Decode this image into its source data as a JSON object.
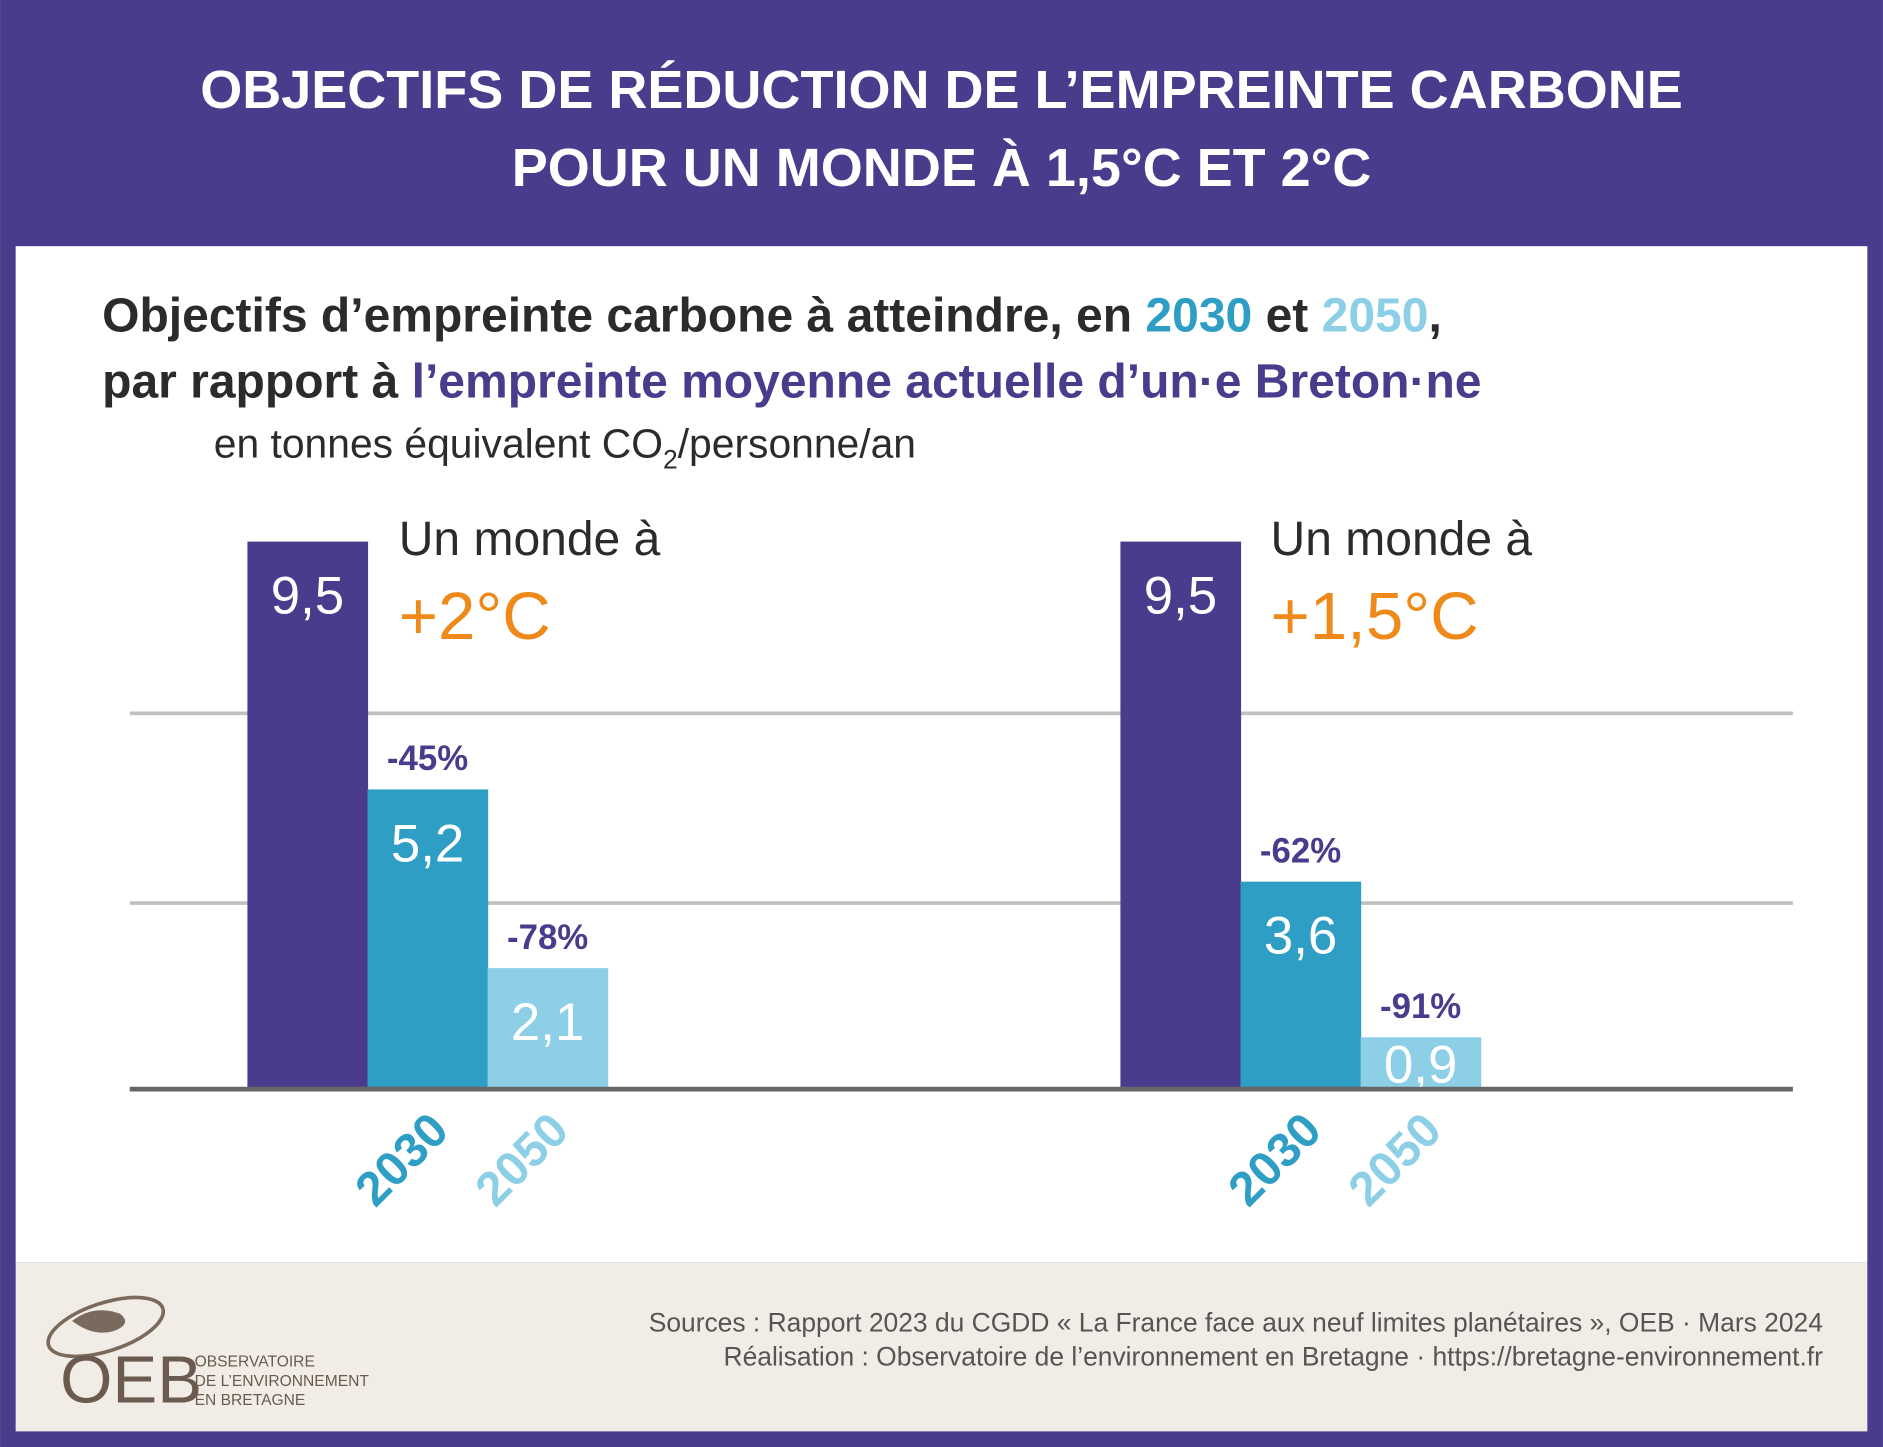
{
  "header": {
    "title_lines": [
      "OBJECTIFS DE RÉDUCTION DE L’EMPREINTE CARBONE",
      "POUR UN MONDE À 1,5°C ET 2°C"
    ]
  },
  "subtitle": {
    "line1": [
      "Objectifs d’empreinte carbone à atteindre, en ",
      "2030",
      " et ",
      "2050",
      ","
    ],
    "line2": [
      "par rapport à ",
      "l’empreinte moyenne actuelle d’un·e Breton·ne"
    ],
    "unit": [
      "en tonnes équivalent CO",
      "2",
      "/personne/an"
    ]
  },
  "chart_data": [
    {
      "type": "bar",
      "title": "Un monde à",
      "scenario": "+2°C",
      "categories": [
        null,
        "2030",
        "2050"
      ],
      "values": [
        9.5,
        5.2,
        2.1
      ],
      "value_labels": [
        "9,5",
        "5,2",
        "2,1"
      ],
      "annotations": [
        null,
        "-45%",
        "-78%"
      ],
      "colors": [
        "#4a3b8c",
        "#2f9ec5",
        "#8dcfe6"
      ],
      "ylim": [
        0,
        9.5
      ]
    },
    {
      "type": "bar",
      "title": "Un monde à",
      "scenario": "+1,5°C",
      "categories": [
        null,
        "2030",
        "2050"
      ],
      "values": [
        9.5,
        3.6,
        0.9
      ],
      "value_labels": [
        "9,5",
        "3,6",
        "0,9"
      ],
      "annotations": [
        null,
        "-62%",
        "-91%"
      ],
      "colors": [
        "#4a3b8c",
        "#2f9ec5",
        "#8dcfe6"
      ],
      "ylim": [
        0,
        9.5
      ]
    }
  ],
  "footer": {
    "sources": "Sources : Rapport 2023 du CGDD « La France face aux neuf limites planétaires », OEB · Mars 2024",
    "credits": "Réalisation : Observatoire de l’environnement en Bretagne · https://bretagne-environnement.fr",
    "logo": "OEB",
    "logo_lines": [
      "OBSERVATOIRE",
      "DE L’ENVIRONNEMENT",
      "EN BRETAGNE"
    ]
  }
}
